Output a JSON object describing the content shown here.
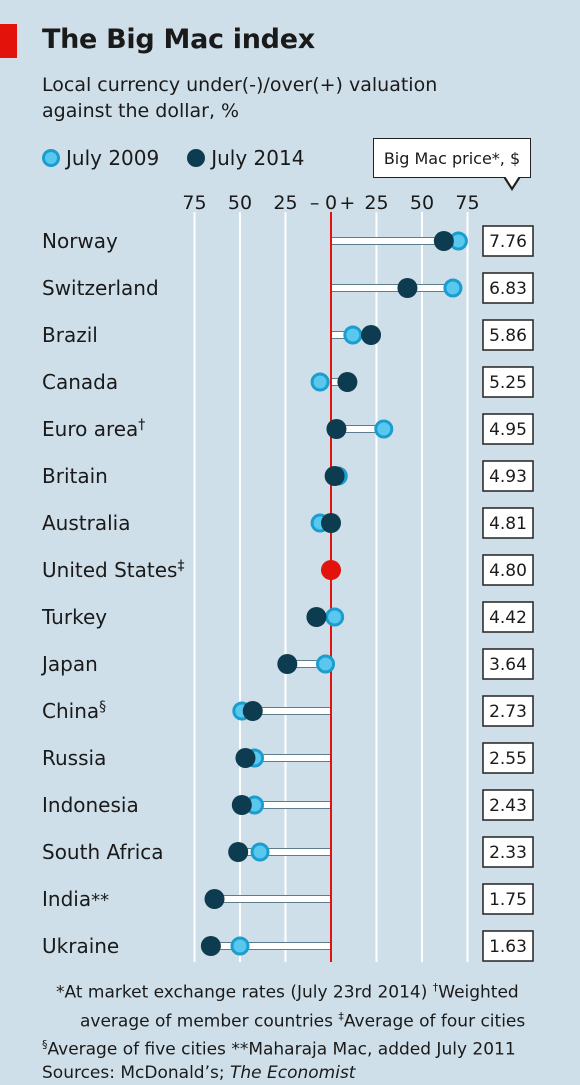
{
  "header": {
    "title": "The Big Mac index",
    "subtitle_line1": "Local currency under(-)/over(+) valuation",
    "subtitle_line2": "against the dollar, %"
  },
  "legend": {
    "label_2009": "July 2009",
    "label_2014": "July 2014",
    "price_label": "Big Mac price*, $"
  },
  "colors": {
    "background": "#cfdfe9",
    "accent_red": "#e3120b",
    "dot_2009_fill": "#5ac8ee",
    "dot_2009_stroke": "#1a9dcf",
    "dot_2014": "#0d3b4f"
  },
  "chart_data": {
    "type": "scatter",
    "xlabel": "",
    "ylabel": "",
    "xlim": [
      -90,
      90
    ],
    "x_tick_labels": [
      "75",
      "50",
      "25",
      "–",
      "0",
      "+",
      "25",
      "50",
      "75"
    ],
    "grid": true,
    "series": [
      {
        "name": "July 2009"
      },
      {
        "name": "July 2014"
      }
    ],
    "countries": [
      {
        "name": "Norway",
        "mark": "",
        "v2009": 70,
        "v2014": 62,
        "price": "7.76"
      },
      {
        "name": "Switzerland",
        "mark": "",
        "v2009": 67,
        "v2014": 42,
        "price": "6.83"
      },
      {
        "name": "Brazil",
        "mark": "",
        "v2009": 12,
        "v2014": 22,
        "price": "5.86"
      },
      {
        "name": "Canada",
        "mark": "",
        "v2009": -6,
        "v2014": 9,
        "price": "5.25"
      },
      {
        "name": "Euro area",
        "mark": "†",
        "v2009": 29,
        "v2014": 3,
        "price": "4.95"
      },
      {
        "name": "Britain",
        "mark": "",
        "v2009": 4,
        "v2014": 2,
        "price": "4.93"
      },
      {
        "name": "Australia",
        "mark": "",
        "v2009": -6,
        "v2014": 0,
        "price": "4.81"
      },
      {
        "name": "United States",
        "mark": "‡",
        "v2009": 0,
        "v2014": 0,
        "price": "4.80"
      },
      {
        "name": "Turkey",
        "mark": "",
        "v2009": 2,
        "v2014": -8,
        "price": "4.42"
      },
      {
        "name": "Japan",
        "mark": "",
        "v2009": -3,
        "v2014": -24,
        "price": "3.64"
      },
      {
        "name": "China",
        "mark": "§",
        "v2009": -49,
        "v2014": -43,
        "price": "2.73"
      },
      {
        "name": "Russia",
        "mark": "",
        "v2009": -42,
        "v2014": -47,
        "price": "2.55"
      },
      {
        "name": "Indonesia",
        "mark": "",
        "v2009": -42,
        "v2014": -49,
        "price": "2.43"
      },
      {
        "name": "South Africa",
        "mark": "",
        "v2009": -39,
        "v2014": -51,
        "price": "2.33"
      },
      {
        "name": "India",
        "mark": "**",
        "v2009": null,
        "v2014": -64,
        "price": "1.75"
      },
      {
        "name": "Ukraine",
        "mark": "",
        "v2009": -50,
        "v2014": -66,
        "price": "1.63"
      }
    ]
  },
  "footnotes": {
    "line1a": "*At market exchange rates (July 23rd 2014)  ",
    "dagger": "†",
    "line1b": "Weighted",
    "line2a": "average of member countries  ",
    "ddagger": "‡",
    "line2b": "Average of four cities",
    "section": "§",
    "line3": "Average of five cities   **Maharaja Mac, added July 2011",
    "sources_prefix": "Sources: McDonald’s; ",
    "sources_italic": "The Economist"
  }
}
